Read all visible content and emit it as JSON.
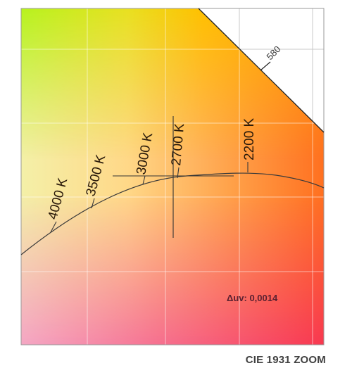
{
  "caption": "CIE 1931 ZOOM",
  "delta_uv": {
    "label": "Δuv: 0,0014",
    "value": 0.0014
  },
  "spectral_locus": {
    "wavelength_label": "580"
  },
  "planckian_locus": {
    "cct_labels": [
      "4000 K",
      "3500 K",
      "3000 K",
      "2700 K",
      "2200 K"
    ]
  },
  "colors": {
    "top_left": "#b8f020",
    "top_right": "#ffa800",
    "bottom_left": "#f4a0c0",
    "bottom_right": "#f83858",
    "locus_line": "#3a3a3a",
    "grid": "#ffffff",
    "crosshair": "#333333"
  }
}
